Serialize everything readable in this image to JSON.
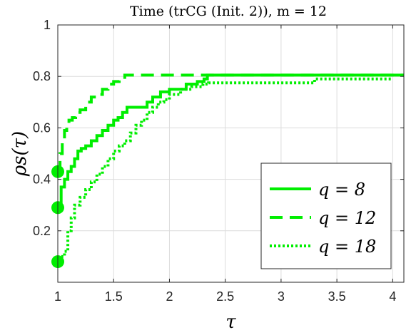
{
  "chart_data": {
    "type": "line",
    "title": "Time (trCG (Init. 2)), m = 12",
    "xlabel": "τ",
    "ylabel": "ρs(τ)",
    "xlim": [
      1,
      4.1
    ],
    "ylim": [
      0,
      1
    ],
    "xticks": [
      1,
      1.5,
      2,
      2.5,
      3,
      3.5,
      4
    ],
    "xtick_labels": [
      "1",
      "1.5",
      "2",
      "2.5",
      "3",
      "3.5",
      "4"
    ],
    "yticks": [
      0.2,
      0.4,
      0.6,
      0.8,
      1
    ],
    "ytick_labels": [
      "0.2",
      "0.4",
      "0.6",
      "0.8",
      "1"
    ],
    "grid": true,
    "legend_position": "bottom-right",
    "color": "#00ee00",
    "series": [
      {
        "name": "q = 8",
        "style": "solid",
        "start_marker": true,
        "x": [
          1,
          1.03,
          1.06,
          1.09,
          1.12,
          1.15,
          1.18,
          1.21,
          1.25,
          1.3,
          1.35,
          1.4,
          1.45,
          1.5,
          1.54,
          1.58,
          1.62,
          1.8,
          1.85,
          1.92,
          2.0,
          2.15,
          2.25,
          2.31,
          2.34,
          4.1
        ],
        "y": [
          0.29,
          0.37,
          0.4,
          0.43,
          0.45,
          0.48,
          0.51,
          0.52,
          0.53,
          0.55,
          0.57,
          0.59,
          0.61,
          0.63,
          0.64,
          0.66,
          0.68,
          0.7,
          0.72,
          0.74,
          0.75,
          0.77,
          0.78,
          0.79,
          0.805,
          0.805
        ]
      },
      {
        "name": "q = 12",
        "style": "dashed",
        "start_marker": true,
        "x": [
          1,
          1.02,
          1.04,
          1.06,
          1.08,
          1.1,
          1.13,
          1.16,
          1.2,
          1.25,
          1.3,
          1.35,
          1.4,
          1.45,
          1.5,
          1.55,
          1.6,
          4.1
        ],
        "y": [
          0.43,
          0.5,
          0.55,
          0.59,
          0.61,
          0.63,
          0.64,
          0.66,
          0.67,
          0.7,
          0.72,
          0.73,
          0.75,
          0.77,
          0.78,
          0.79,
          0.805,
          0.805
        ]
      },
      {
        "name": "q = 18",
        "style": "dotted",
        "start_marker": true,
        "x": [
          1,
          1.03,
          1.06,
          1.09,
          1.12,
          1.15,
          1.2,
          1.25,
          1.3,
          1.35,
          1.4,
          1.45,
          1.5,
          1.55,
          1.6,
          1.65,
          1.7,
          1.75,
          1.8,
          1.85,
          1.9,
          1.95,
          2.0,
          2.1,
          2.2,
          2.3,
          2.35,
          3.3,
          4.0
        ],
        "y": [
          0.08,
          0.1,
          0.12,
          0.2,
          0.25,
          0.3,
          0.33,
          0.36,
          0.39,
          0.42,
          0.45,
          0.48,
          0.51,
          0.53,
          0.55,
          0.58,
          0.61,
          0.63,
          0.66,
          0.68,
          0.7,
          0.71,
          0.73,
          0.75,
          0.76,
          0.77,
          0.775,
          0.79,
          0.79
        ]
      }
    ]
  }
}
